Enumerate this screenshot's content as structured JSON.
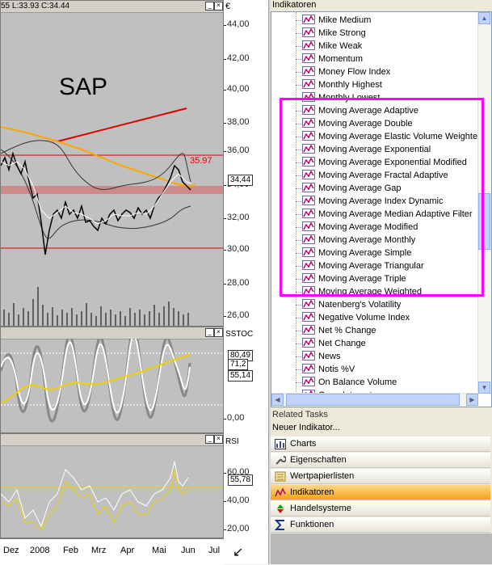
{
  "chart": {
    "price_header": "55 L:33.93 C:34.44",
    "title": "SAP",
    "price_axis_currency": "€",
    "price_ticks": [
      "44,00",
      "42,00",
      "40,00",
      "38,00",
      "36,00",
      "34,00",
      "32,00",
      "30,00",
      "28,00",
      "26,00"
    ],
    "price_ticks_values": [
      44,
      42,
      40,
      38,
      36,
      34,
      32,
      30,
      28,
      26
    ],
    "last_price_tag": "34,44",
    "high_label": "35.97",
    "stoch_label": "SSTOC",
    "stoch_tags": [
      "80,49",
      "71,2",
      "55,14"
    ],
    "stoch_zero": "0,00",
    "rsi_label": "RSI",
    "rsi_tag": "55,78",
    "rsi_ticks": [
      "60,00",
      "40,00",
      "20,00"
    ],
    "months": [
      "Dez",
      "2008",
      "Feb",
      "Mrz",
      "Apr",
      "Mai",
      "Jun",
      "Jul"
    ],
    "colors": {
      "pane_bg": "#c0c0c0",
      "trend_red": "#e00000",
      "ma_orange": "#ffa500",
      "resistance_band": "#d08080",
      "stoch_yellow": "#f0d000"
    }
  },
  "indikatoren": {
    "header": "Indikatoren",
    "items": [
      "Mike Medium",
      "Mike Strong",
      "Mike Weak",
      "Momentum",
      "Money Flow Index",
      "Monthly Highest",
      "Monthly Lowest",
      "Moving Average Adaptive",
      "Moving Average Double",
      "Moving Average Elastic Volume Weighted",
      "Moving Average Exponential",
      "Moving Average Exponential Modified",
      "Moving Average Fractal Adaptive",
      "Moving Average Gap",
      "Moving Average Index Dynamic",
      "Moving Average Median Adaptive Filter",
      "Moving Average Modified",
      "Moving Average Monthly",
      "Moving Average Simple",
      "Moving Average Triangular",
      "Moving Average Triple",
      "Moving Average Weighted",
      "Natenberg's Volatility",
      "Negative Volume Index",
      "Net % Change",
      "Net Change",
      "News",
      "Notis %V",
      "On Balance Volume",
      "Open Interest"
    ],
    "highlight_color": "#ff00ff"
  },
  "related_tasks": {
    "header": "Related Tasks",
    "new_indicator": "Neuer Indikator...",
    "items": [
      {
        "label": "Charts",
        "icon": "chart-icon"
      },
      {
        "label": "Eigenschaften",
        "icon": "wrench-icon"
      },
      {
        "label": "Wertpapierlisten",
        "icon": "list-icon"
      },
      {
        "label": "Indikatoren",
        "icon": "indicator-icon",
        "active": true
      },
      {
        "label": "Handelsysteme",
        "icon": "trading-system-icon"
      },
      {
        "label": "Funktionen",
        "icon": "sigma-icon"
      }
    ]
  }
}
